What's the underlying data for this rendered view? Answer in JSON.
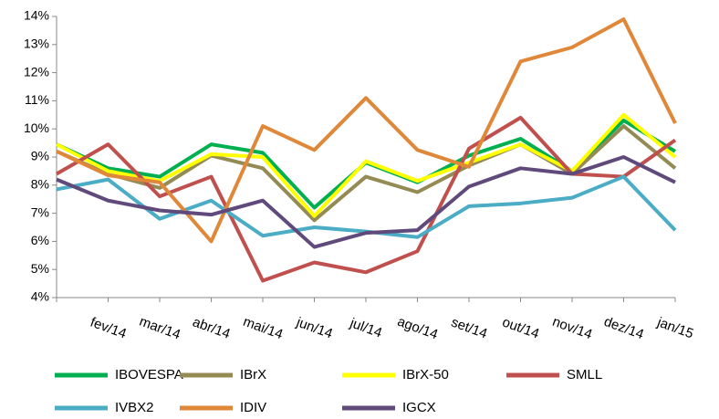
{
  "chart_data": {
    "type": "line",
    "categories": [
      null,
      "fev/14",
      "mar/14",
      "abr/14",
      "mai/14",
      "jun/14",
      "jul/14",
      "ago/14",
      "set/14",
      "out/14",
      "nov/14",
      "dez/14",
      "jan/15"
    ],
    "series": [
      {
        "name": "IBOVESPA",
        "color": "#00b050",
        "values": [
          9.45,
          8.6,
          8.3,
          9.45,
          9.15,
          7.2,
          8.8,
          8.1,
          9.05,
          9.65,
          8.5,
          10.3,
          9.2
        ]
      },
      {
        "name": "IBrX",
        "color": "#948a54",
        "values": [
          9.2,
          8.4,
          7.9,
          9.05,
          8.6,
          6.75,
          8.3,
          7.75,
          8.7,
          9.45,
          8.4,
          10.1,
          8.6
        ]
      },
      {
        "name": "IBrX-50",
        "color": "#ffff00",
        "values": [
          9.45,
          8.5,
          8.15,
          9.1,
          9.0,
          6.9,
          8.85,
          8.15,
          8.8,
          9.45,
          8.5,
          10.5,
          9.0
        ]
      },
      {
        "name": "SMLL",
        "color": "#c0504d",
        "values": [
          8.4,
          9.45,
          7.6,
          8.3,
          4.6,
          5.25,
          4.9,
          5.65,
          9.3,
          10.4,
          8.4,
          8.3,
          9.6
        ]
      },
      {
        "name": "IVBX2",
        "color": "#4bacc6",
        "values": [
          7.85,
          8.2,
          6.8,
          7.45,
          6.2,
          6.5,
          6.35,
          6.15,
          7.25,
          7.35,
          7.55,
          8.3,
          6.4
        ]
      },
      {
        "name": "IDIV",
        "color": "#e0883a",
        "values": [
          9.2,
          8.35,
          8.1,
          6.0,
          10.1,
          9.25,
          11.1,
          9.25,
          8.65,
          12.4,
          12.9,
          13.9,
          10.2
        ]
      },
      {
        "name": "IGCX",
        "color": "#604a7b",
        "values": [
          8.2,
          7.45,
          7.1,
          6.95,
          7.45,
          5.8,
          6.3,
          6.4,
          7.95,
          8.6,
          8.4,
          9.0,
          8.1
        ]
      }
    ],
    "ylim": [
      4,
      14
    ],
    "yticks": [
      {
        "value": 4,
        "label": "4%"
      },
      {
        "value": 5,
        "label": "5%"
      },
      {
        "value": 6,
        "label": "6%"
      },
      {
        "value": 7,
        "label": "7%"
      },
      {
        "value": 8,
        "label": "8%"
      },
      {
        "value": 9,
        "label": "9%"
      },
      {
        "value": 10,
        "label": "10%"
      },
      {
        "value": 11,
        "label": "11%"
      },
      {
        "value": 12,
        "label": "12%"
      },
      {
        "value": 13,
        "label": "13%"
      },
      {
        "value": 14,
        "label": "14%"
      }
    ]
  }
}
